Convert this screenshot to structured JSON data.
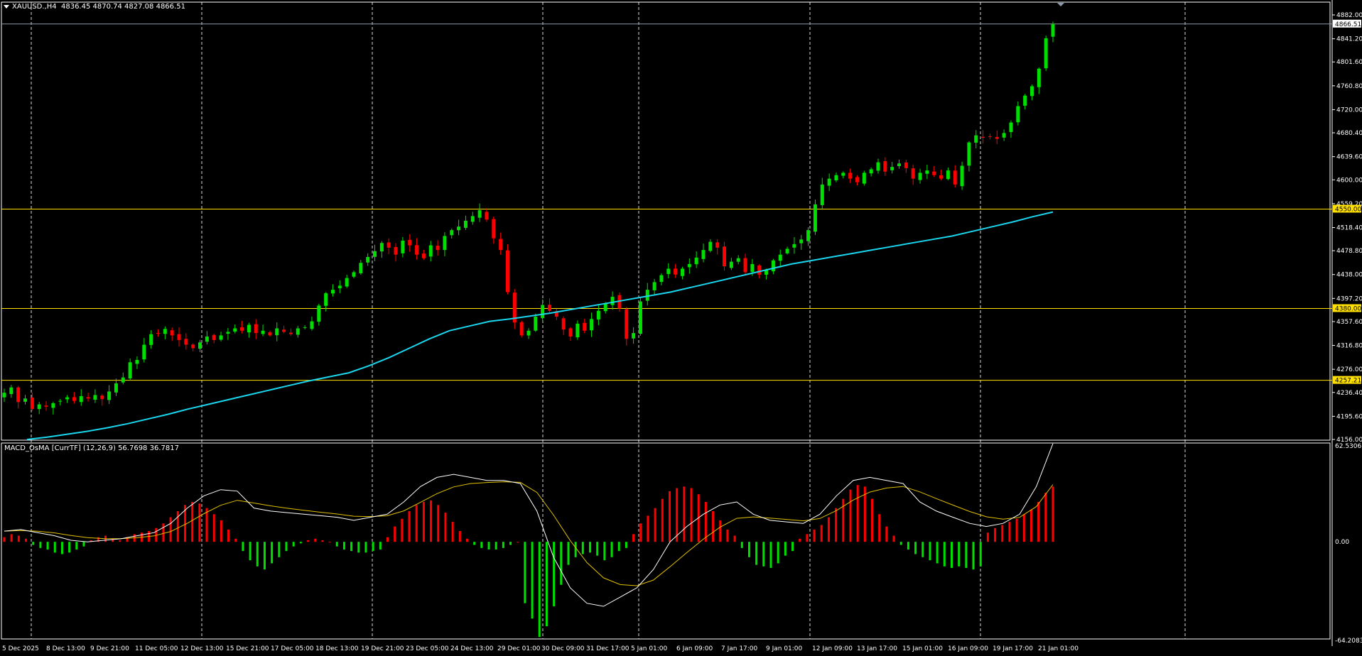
{
  "header": {
    "symbol": "XAUUSD.,H4",
    "ohlc": "4836.45 4870.74 4827.08 4866.51",
    "indicator": "MACD_OsMA [CurrTF] (12,26,9) 56.7698 36.7817"
  },
  "colors": {
    "background": "#000000",
    "grid": "#ffffff",
    "bull_candle": "#00e000",
    "bear_candle": "#ff0000",
    "ma_line": "#19d6ee",
    "level_line": "#ffe000",
    "macd_line": "#ffffff",
    "signal_line": "#e0c000"
  },
  "chart_data": [
    {
      "type": "candlestick",
      "name": "price",
      "y_axis_ticks": [
        "4882.00",
        "4841.20",
        "4801.60",
        "4760.80",
        "4720.00",
        "4680.40",
        "4639.60",
        "4600.00",
        "4559.20",
        "4518.40",
        "4478.80",
        "4438.00",
        "4397.20",
        "4357.60",
        "4316.80",
        "4276.00",
        "4236.40",
        "4195.60",
        "4156.00"
      ],
      "ylim": [
        4156.0,
        4882.0
      ],
      "current_price": "4866.51",
      "levels": [
        "4550.00",
        "4380.00",
        "4257.21"
      ],
      "x_tick_labels": [
        "5 Dec 2025",
        "8 Dec 13:00",
        "9 Dec 21:00",
        "11 Dec 05:00",
        "12 Dec 13:00",
        "15 Dec 21:00",
        "17 Dec 05:00",
        "18 Dec 13:00",
        "19 Dec 21:00",
        "23 Dec 05:00",
        "24 Dec 13:00",
        "29 Dec 01:00",
        "30 Dec 09:00",
        "31 Dec 17:00",
        "5 Jan 01:00",
        "6 Jan 09:00",
        "7 Jan 17:00",
        "9 Jan 01:00",
        "12 Jan 09:00",
        "13 Jan 17:00",
        "15 Jan 01:00",
        "16 Jan 09:00",
        "19 Jan 17:00",
        "21 Jan 01:00"
      ],
      "close_path": [
        4236,
        4245,
        4220,
        4226,
        4208,
        4216,
        4212,
        4218,
        4222,
        4228,
        4222,
        4230,
        4226,
        4232,
        4225,
        4238,
        4252,
        4262,
        4288,
        4292,
        4318,
        4336,
        4338,
        4345,
        4334,
        4326,
        4318,
        4312,
        4322,
        4332,
        4326,
        4334,
        4340,
        4346,
        4342,
        4352,
        4338,
        4342,
        4334,
        4346,
        4340,
        4336,
        4346,
        4348,
        4358,
        4385,
        4406,
        4412,
        4419,
        4432,
        4442,
        4458,
        4468,
        4478,
        4492,
        4484,
        4472,
        4496,
        4488,
        4472,
        4466,
        4488,
        4480,
        4504,
        4514,
        4520,
        4530,
        4538,
        4548,
        4532,
        4500,
        4480,
        4408,
        4356,
        4334,
        4342,
        4366,
        4386,
        4376,
        4366,
        4344,
        4332,
        4354,
        4342,
        4362,
        4376,
        4388,
        4400,
        4380,
        4328,
        4338,
        4392,
        4412,
        4425,
        4437,
        4448,
        4438,
        4448,
        4456,
        4467,
        4480,
        4494,
        4484,
        4452,
        4460,
        4466,
        4442,
        4456,
        4438,
        4446,
        4462,
        4472,
        4482,
        4490,
        4498,
        4514,
        4558,
        4592,
        4602,
        4608,
        4612,
        4602,
        4596,
        4612,
        4618,
        4630,
        4614,
        4622,
        4628,
        4620,
        4602,
        4612,
        4616,
        4608,
        4602,
        4616,
        4592,
        4624,
        4664,
        4676,
        4672,
        4674,
        4670,
        4680,
        4698,
        4726,
        4744,
        4760,
        4790,
        4842,
        4866
      ],
      "ma_path": [
        4156,
        4160,
        4165,
        4170,
        4176,
        4183,
        4191,
        4199,
        4208,
        4216,
        4224,
        4232,
        4240,
        4248,
        4256,
        4263,
        4270,
        4282,
        4296,
        4312,
        4328,
        4342,
        4350,
        4358,
        4362,
        4367,
        4372,
        4378,
        4384,
        4390,
        4396,
        4402,
        4408,
        4416,
        4424,
        4432,
        4440,
        4448,
        4456,
        4462,
        4468,
        4474,
        4480,
        4486,
        4492,
        4498,
        4504,
        4512,
        4520,
        4528,
        4537,
        4545
      ]
    },
    {
      "type": "bar",
      "name": "MACD_OsMA",
      "y_axis_ticks": [
        "62.5306",
        "0.00",
        "-64.2083"
      ],
      "ylim": [
        -64.2083,
        62.5306
      ],
      "histogram": [
        3,
        5,
        4,
        2,
        -2,
        -4,
        -5,
        -7,
        -8,
        -7,
        -5,
        -3,
        1,
        3,
        4,
        2,
        1,
        3,
        5,
        6,
        7,
        9,
        12,
        16,
        20,
        24,
        26,
        25,
        22,
        18,
        14,
        8,
        2,
        -6,
        -12,
        -16,
        -18,
        -14,
        -10,
        -6,
        -3,
        -1,
        1,
        2,
        1,
        0,
        -3,
        -5,
        -6,
        -7,
        -7,
        -6,
        -5,
        3,
        10,
        15,
        20,
        24,
        26,
        27,
        24,
        19,
        13,
        7,
        2,
        -2,
        -4,
        -5,
        -5,
        -4,
        -2,
        0,
        -40,
        -50,
        -62,
        -55,
        -42,
        -28,
        -15,
        -10,
        -8,
        -7,
        -9,
        -12,
        -10,
        -6,
        -4,
        5,
        12,
        17,
        22,
        28,
        33,
        35,
        36,
        35,
        31,
        26,
        20,
        14,
        8,
        4,
        -4,
        -10,
        -15,
        -16,
        -17,
        -14,
        -9,
        -6,
        2,
        5,
        8,
        11,
        16,
        22,
        28,
        34,
        37,
        36,
        28,
        18,
        10,
        4,
        -2,
        -5,
        -8,
        -10,
        -12,
        -14,
        -16,
        -17,
        -16,
        -17,
        -18,
        -16,
        6,
        9,
        11,
        13,
        15,
        18,
        21,
        26,
        32,
        36
      ],
      "macd_line": [
        7,
        8,
        6,
        4,
        1,
        0,
        1,
        2,
        4,
        6,
        12,
        22,
        30,
        34,
        33,
        22,
        20,
        19,
        18,
        17,
        16,
        14,
        16,
        18,
        26,
        36,
        42,
        44,
        42,
        40,
        40,
        38,
        20,
        -10,
        -30,
        -40,
        -42,
        -36,
        -30,
        -18,
        0,
        10,
        18,
        24,
        26,
        18,
        14,
        13,
        12,
        18,
        30,
        40,
        42,
        40,
        38,
        26,
        20,
        16,
        12,
        10,
        12,
        18,
        36,
        64
      ]
    }
  ]
}
